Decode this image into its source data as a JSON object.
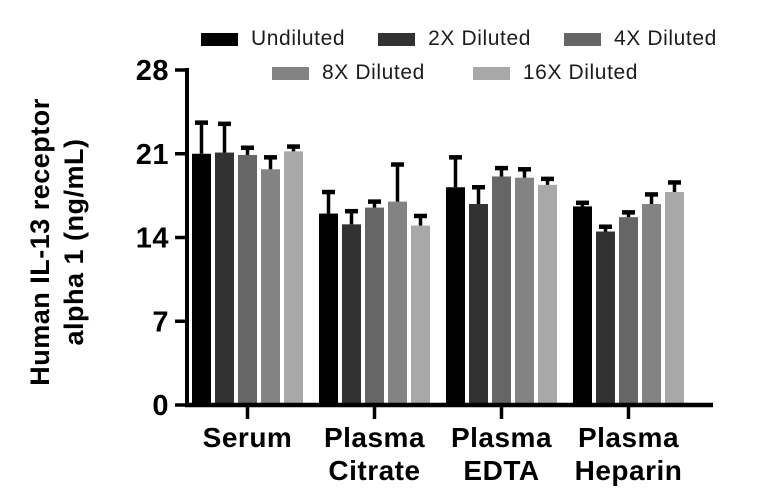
{
  "chart_data": {
    "type": "bar",
    "title": "",
    "ylabel": "Human IL-13 receptor alpha 1 (ng/mL)",
    "ylabel_lines": [
      "Human IL-13 receptor",
      "alpha 1 (ng/mL)"
    ],
    "xlabel": "",
    "categories": [
      "Serum",
      "Plasma Citrate",
      "Plasma EDTA",
      "Plasma Heparin"
    ],
    "category_lines": [
      [
        "Serum"
      ],
      [
        "Plasma",
        "Citrate"
      ],
      [
        "Plasma",
        "EDTA"
      ],
      [
        "Plasma",
        "Heparin"
      ]
    ],
    "ylim": [
      0,
      28
    ],
    "yticks": [
      0,
      7,
      14,
      21,
      28
    ],
    "grid": false,
    "legend_position": "top",
    "error_bars": "upper only, black caps",
    "axis_color": "#000000",
    "series": [
      {
        "name": "Undiluted",
        "color": "#000000",
        "values": [
          21.0,
          16.0,
          18.2,
          16.6
        ],
        "errors": [
          2.6,
          1.8,
          2.5,
          0.3
        ]
      },
      {
        "name": "2X Diluted",
        "color": "#323232",
        "values": [
          21.1,
          15.1,
          16.8,
          14.5
        ],
        "errors": [
          2.4,
          1.1,
          1.4,
          0.4
        ]
      },
      {
        "name": "4X Diluted",
        "color": "#666666",
        "values": [
          20.9,
          16.5,
          19.1,
          15.7
        ],
        "errors": [
          0.6,
          0.5,
          0.7,
          0.4
        ]
      },
      {
        "name": "8X Diluted",
        "color": "#838383",
        "values": [
          19.7,
          17.0,
          19.0,
          16.8
        ],
        "errors": [
          1.0,
          3.1,
          0.7,
          0.8
        ]
      },
      {
        "name": "16X Diluted",
        "color": "#a8a8a8",
        "values": [
          21.2,
          15.0,
          18.4,
          17.8
        ],
        "errors": [
          0.4,
          0.8,
          0.5,
          0.8
        ]
      }
    ]
  }
}
